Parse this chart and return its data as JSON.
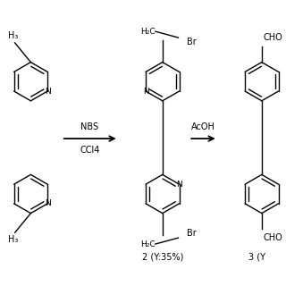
{
  "background": "#ffffff",
  "figsize": [
    3.2,
    3.2
  ],
  "dpi": 100,
  "arrow1_label_top": "NBS",
  "arrow1_label_bot": "CCl4",
  "arrow2_label": "AcOH",
  "compound2_label": "2 (Y:35%)",
  "compound3_label": "3 (Y"
}
